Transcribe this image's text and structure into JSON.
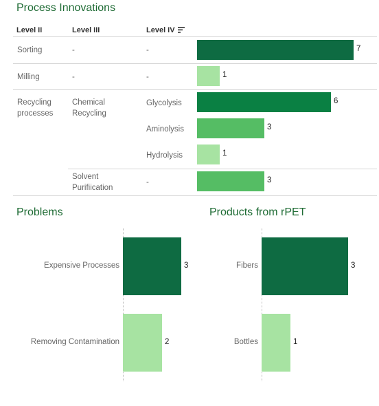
{
  "innovations": {
    "title": "Process Innovations",
    "headers": {
      "level2": "Level II",
      "level3": "Level III",
      "level4": "Level IV"
    },
    "sort_icon": "sort-descending-icon",
    "max": 7,
    "rows": [
      {
        "l2": "Sorting",
        "l3": "-",
        "l4": "-",
        "value": 7,
        "color": "#0e6b42"
      },
      {
        "l2": "Milling",
        "l3": "-",
        "l4": "-",
        "value": 1,
        "color": "#a7e3a2"
      },
      {
        "l2": "Recycling processes",
        "l3": "Chemical Recycling",
        "l4": "Glycolysis",
        "value": 6,
        "color": "#0a8043"
      },
      {
        "l2": "",
        "l3": "",
        "l4": "Aminolysis",
        "value": 3,
        "color": "#55bd64"
      },
      {
        "l2": "",
        "l3": "",
        "l4": "Hydrolysis",
        "value": 1,
        "color": "#a7e3a2"
      },
      {
        "l2": "",
        "l3": "Solvent Purifiication",
        "l4": "-",
        "value": 3,
        "color": "#55bd64"
      }
    ]
  },
  "problems": {
    "title": "Problems",
    "max": 3,
    "items": [
      {
        "label": "Expensive Processes",
        "value": 3,
        "color": "#0e6b42"
      },
      {
        "label": "Removing Contamination",
        "value": 2,
        "color": "#a7e3a2"
      }
    ]
  },
  "products": {
    "title": "Products from rPET",
    "max": 3,
    "items": [
      {
        "label": "Fibers",
        "value": 3,
        "color": "#0e6b42"
      },
      {
        "label": "Bottles",
        "value": 1,
        "color": "#a7e3a2"
      }
    ]
  },
  "chart_data": [
    {
      "type": "bar",
      "title": "Process Innovations",
      "categories": [
        "Sorting",
        "Milling",
        "Glycolysis",
        "Aminolysis",
        "Hydrolysis",
        "Solvent Purifiication"
      ],
      "values": [
        7,
        1,
        6,
        3,
        1,
        3
      ],
      "orientation": "horizontal"
    },
    {
      "type": "bar",
      "title": "Problems",
      "categories": [
        "Expensive Processes",
        "Removing Contamination"
      ],
      "values": [
        3,
        2
      ],
      "orientation": "horizontal"
    },
    {
      "type": "bar",
      "title": "Products from rPET",
      "categories": [
        "Fibers",
        "Bottles"
      ],
      "values": [
        3,
        1
      ],
      "orientation": "horizontal"
    }
  ]
}
